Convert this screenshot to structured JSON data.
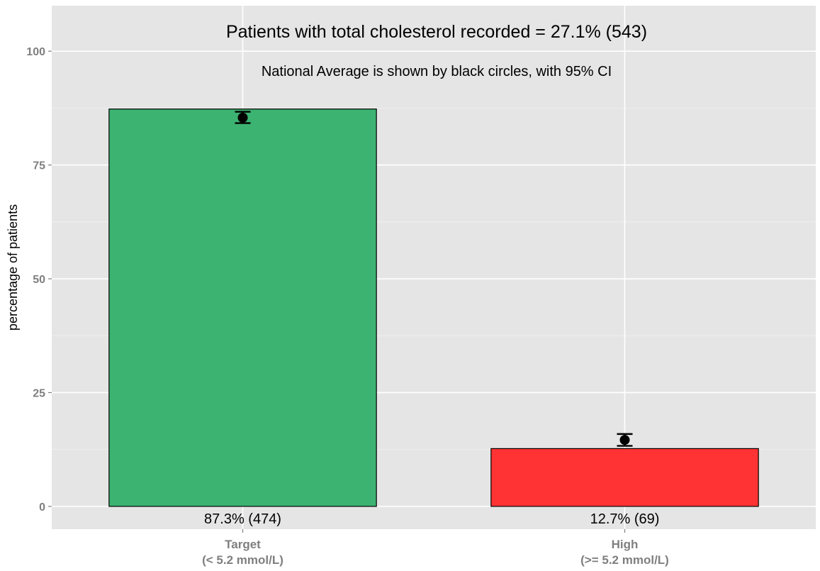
{
  "chart_data": {
    "type": "bar",
    "title": "Patients with total cholesterol recorded = 27.1% (543)",
    "subtitle": "National Average is shown by black circles, with 95% CI",
    "xlabel": "",
    "ylabel": "percentage of patients",
    "ylim": [
      -5,
      110
    ],
    "yticks": [
      0,
      25,
      50,
      75,
      100
    ],
    "grid": true,
    "categories": [
      [
        "Target",
        "(< 5.2 mmol/L)"
      ],
      [
        "High",
        "(>= 5.2 mmol/L)"
      ]
    ],
    "values": [
      87.3,
      12.7
    ],
    "bar_labels": [
      "87.3% (474)",
      "12.7% (69)"
    ],
    "national_average": {
      "points": [
        85.4,
        14.6
      ],
      "ci_low": [
        84.2,
        13.3
      ],
      "ci_high": [
        86.7,
        15.9
      ]
    },
    "colors": {
      "bars": [
        "#3cb371",
        "#ff3333"
      ],
      "panel_background": "#e5e5e5",
      "grid_major": "#ffffff",
      "grid_minor": "#f2f2f2",
      "bar_outline": "#000000",
      "point": "#000000",
      "tick_text": "#7f7f7f"
    }
  }
}
